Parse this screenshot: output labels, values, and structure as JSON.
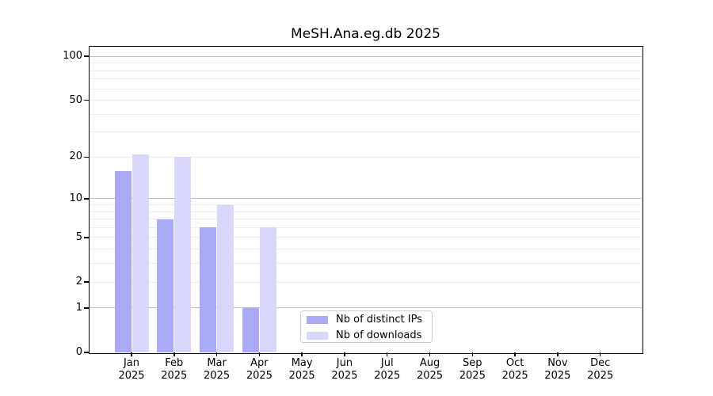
{
  "title": "MeSH.Ana.eg.db 2025",
  "chart_data": {
    "type": "bar",
    "title": "MeSH.Ana.eg.db 2025",
    "categories": [
      "Jan",
      "Feb",
      "Mar",
      "Apr",
      "May",
      "Jun",
      "Jul",
      "Aug",
      "Sep",
      "Oct",
      "Nov",
      "Dec"
    ],
    "year": "2025",
    "series": [
      {
        "name": "Nb of distinct IPs",
        "color": "#a9a9f7",
        "values": [
          16,
          7,
          6,
          1,
          0,
          0,
          0,
          0,
          0,
          0,
          0,
          0
        ]
      },
      {
        "name": "Nb of downloads",
        "color": "#d8d8fa",
        "values": [
          21,
          20,
          9,
          6,
          0,
          0,
          0,
          0,
          0,
          0,
          0,
          0
        ]
      }
    ],
    "y_scale": "log1p",
    "ylim": [
      0,
      110
    ],
    "y_ticks": [
      100,
      50,
      20,
      10,
      5,
      2,
      1,
      0
    ],
    "y_major_gridlines": [
      1,
      10,
      100
    ],
    "y_minor_gridlines": [
      2,
      3,
      4,
      5,
      6,
      7,
      8,
      9,
      20,
      30,
      40,
      50,
      60,
      70,
      80,
      90
    ],
    "grid": true,
    "legend_position": "lower-center",
    "xlabel": "",
    "ylabel": ""
  },
  "colors": {
    "axis": "#000000",
    "major_gridline": "#bdbdbd",
    "minor_gridline": "#ededed",
    "background": "#ffffff"
  }
}
